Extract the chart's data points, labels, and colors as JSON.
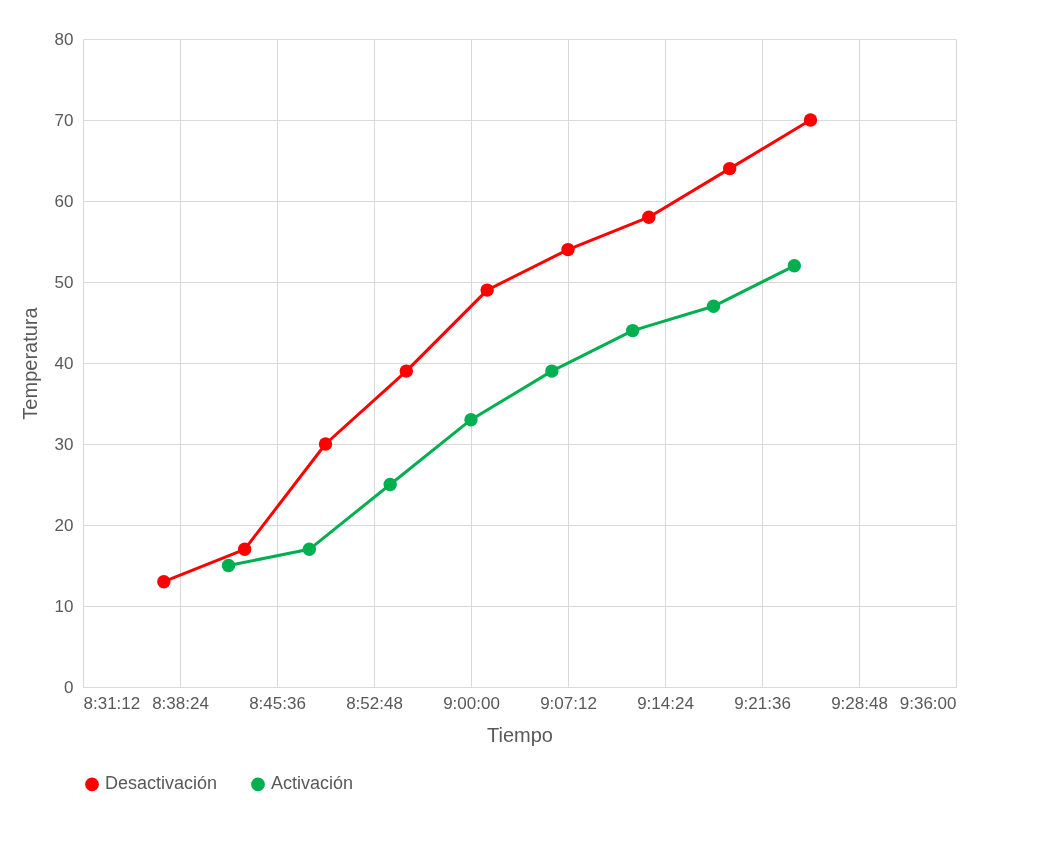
{
  "chart_data": {
    "type": "line",
    "xlabel": "Tiempo",
    "ylabel": "Temperatura",
    "xlim": [
      8.52,
      9.6
    ],
    "xticks": [
      {
        "value": 8.52,
        "label": "8:31:12"
      },
      {
        "value": 8.64,
        "label": "8:38:24"
      },
      {
        "value": 8.76,
        "label": "8:45:36"
      },
      {
        "value": 8.88,
        "label": "8:52:48"
      },
      {
        "value": 9.0,
        "label": "9:00:00"
      },
      {
        "value": 9.12,
        "label": "9:07:12"
      },
      {
        "value": 9.24,
        "label": "9:14:24"
      },
      {
        "value": 9.36,
        "label": "9:21:36"
      },
      {
        "value": 9.48,
        "label": "9:28:48"
      },
      {
        "value": 9.6,
        "label": "9:36:00"
      }
    ],
    "ylim": [
      0,
      80
    ],
    "yticks": [
      0,
      10,
      20,
      30,
      40,
      50,
      60,
      70,
      80
    ],
    "grid": true,
    "legend": "bottom",
    "marker": "circle",
    "line_style": "solid",
    "series": [
      {
        "name": "Desactivación",
        "color": "#ff0000",
        "x": [
          8.62,
          8.72,
          8.82,
          8.92,
          9.02,
          9.12,
          9.22,
          9.32,
          9.42
        ],
        "values": [
          13,
          17,
          30,
          39,
          49,
          54,
          58,
          64,
          70
        ]
      },
      {
        "name": "Activación",
        "color": "#00b050",
        "x": [
          8.7,
          8.8,
          8.9,
          9.0,
          9.1,
          9.2,
          9.3,
          9.4
        ],
        "values": [
          15,
          17,
          25,
          33,
          39,
          44,
          47,
          52
        ]
      }
    ]
  }
}
